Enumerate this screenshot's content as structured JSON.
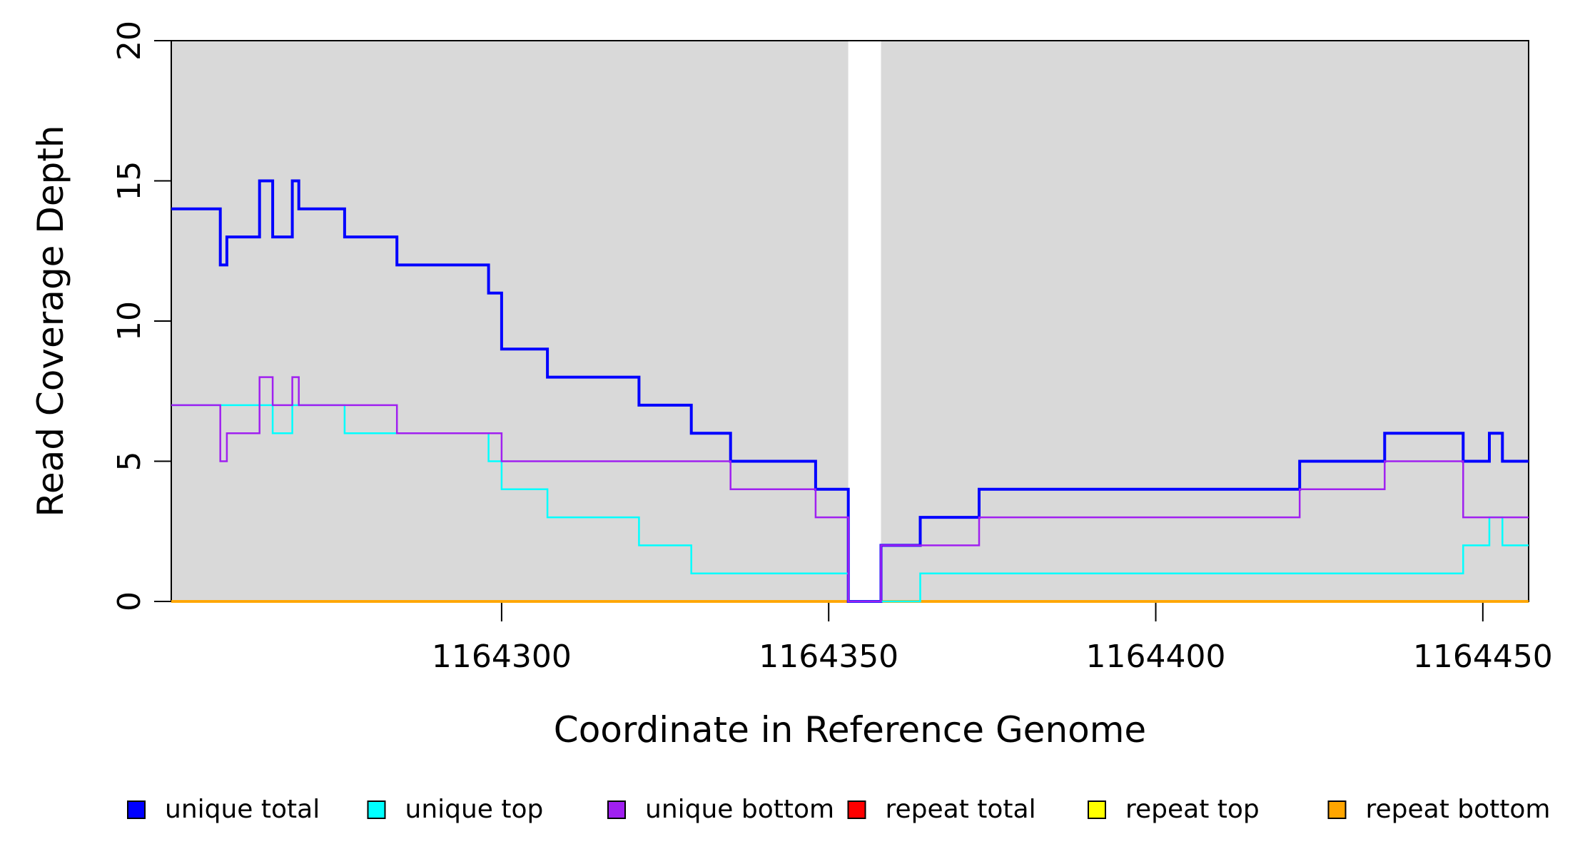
{
  "chart_data": {
    "type": "step-line",
    "title": "",
    "xlabel": "Coordinate in Reference Genome",
    "ylabel": "Read Coverage Depth",
    "x_axis": {
      "range": [
        1164249.5,
        1164457
      ],
      "ticks": [
        {
          "value": 1164300,
          "label": "1164300"
        },
        {
          "value": 1164350,
          "label": "1164350"
        },
        {
          "value": 1164400,
          "label": "1164400"
        },
        {
          "value": 1164450,
          "label": "1164450"
        }
      ]
    },
    "y_axis": {
      "range": [
        0,
        20
      ],
      "ticks": [
        {
          "value": 0,
          "label": "0"
        },
        {
          "value": 5,
          "label": "5"
        },
        {
          "value": 10,
          "label": "10"
        },
        {
          "value": 15,
          "label": "15"
        },
        {
          "value": 20,
          "label": "20"
        }
      ]
    },
    "plot_background": "#D9D9D9",
    "coverage_gap": {
      "x_start": 1164353,
      "x_end": 1164358,
      "color": "#FFFFFF"
    },
    "series": [
      {
        "name": "unique total",
        "color": "#0000FF",
        "line_width": 4,
        "x_end": 1164457,
        "steps": [
          [
            1164249.5,
            14
          ],
          [
            1164257,
            12
          ],
          [
            1164258,
            13
          ],
          [
            1164263,
            15
          ],
          [
            1164265,
            13
          ],
          [
            1164268,
            15
          ],
          [
            1164269,
            14
          ],
          [
            1164276,
            13
          ],
          [
            1164284,
            12
          ],
          [
            1164298,
            11
          ],
          [
            1164300,
            9
          ],
          [
            1164307,
            8
          ],
          [
            1164321,
            7
          ],
          [
            1164329,
            6
          ],
          [
            1164335,
            5
          ],
          [
            1164348,
            4
          ],
          [
            1164353,
            0
          ],
          [
            1164358,
            2
          ],
          [
            1164364,
            3
          ],
          [
            1164373,
            4
          ],
          [
            1164422,
            5
          ],
          [
            1164435,
            6
          ],
          [
            1164447,
            5
          ],
          [
            1164451,
            6
          ],
          [
            1164453,
            5
          ]
        ]
      },
      {
        "name": "unique top",
        "color": "#00FFFF",
        "line_width": 2.5,
        "x_end": 1164457,
        "steps": [
          [
            1164249.5,
            7
          ],
          [
            1164265,
            6
          ],
          [
            1164268,
            7
          ],
          [
            1164276,
            6
          ],
          [
            1164298,
            5
          ],
          [
            1164300,
            4
          ],
          [
            1164307,
            3
          ],
          [
            1164321,
            2
          ],
          [
            1164329,
            1
          ],
          [
            1164353,
            0
          ],
          [
            1164364,
            1
          ],
          [
            1164447,
            2
          ],
          [
            1164451,
            3
          ],
          [
            1164453,
            2
          ]
        ]
      },
      {
        "name": "unique bottom",
        "color": "#A020F0",
        "line_width": 2.5,
        "x_end": 1164457,
        "steps": [
          [
            1164249.5,
            7
          ],
          [
            1164257,
            5
          ],
          [
            1164258,
            6
          ],
          [
            1164263,
            8
          ],
          [
            1164265,
            7
          ],
          [
            1164268,
            8
          ],
          [
            1164269,
            7
          ],
          [
            1164284,
            6
          ],
          [
            1164300,
            5
          ],
          [
            1164335,
            4
          ],
          [
            1164348,
            3
          ],
          [
            1164353,
            0
          ],
          [
            1164358,
            2
          ],
          [
            1164373,
            3
          ],
          [
            1164422,
            4
          ],
          [
            1164435,
            5
          ],
          [
            1164447,
            3
          ]
        ]
      },
      {
        "name": "repeat total",
        "color": "#FF0000",
        "line_width": 3.5,
        "x_end": 1164457,
        "steps": [
          [
            1164249.5,
            0
          ]
        ]
      },
      {
        "name": "repeat top",
        "color": "#FFFF00",
        "line_width": 3.5,
        "x_end": 1164457,
        "steps": [
          [
            1164249.5,
            0
          ]
        ]
      },
      {
        "name": "repeat bottom",
        "color": "#FFA500",
        "line_width": 3.5,
        "x_end": 1164457,
        "steps": [
          [
            1164249.5,
            0
          ]
        ]
      }
    ],
    "draw_order": [
      3,
      4,
      5,
      0,
      1,
      2
    ],
    "legend": {
      "items": [
        {
          "label": "unique total",
          "color": "#0000FF"
        },
        {
          "label": "unique top",
          "color": "#00FFFF"
        },
        {
          "label": "unique bottom",
          "color": "#A020F0"
        },
        {
          "label": "repeat total",
          "color": "#FF0000"
        },
        {
          "label": "repeat top",
          "color": "#FFFF00"
        },
        {
          "label": "repeat bottom",
          "color": "#FFA500"
        }
      ]
    }
  }
}
